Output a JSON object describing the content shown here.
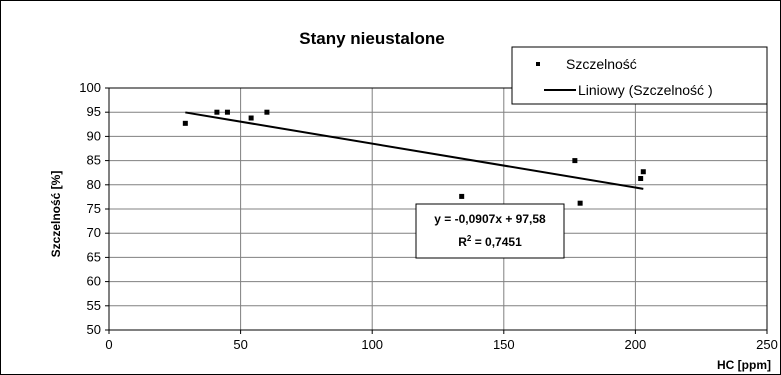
{
  "chart_data": {
    "type": "scatter",
    "title": "Stany nieustalone",
    "xlabel": "HC [ppm]",
    "ylabel": "Szczelność [%]",
    "xlim": [
      0,
      250
    ],
    "ylim": [
      50,
      100
    ],
    "x_ticks": [
      0,
      50,
      100,
      150,
      200,
      250
    ],
    "y_ticks": [
      50,
      55,
      60,
      65,
      70,
      75,
      80,
      85,
      90,
      95,
      100
    ],
    "grid": {
      "x": true,
      "y": true
    },
    "legend_position": "top-right",
    "series": [
      {
        "name": "Szczelność",
        "kind": "markers",
        "color": "#000000",
        "x": [
          29,
          41,
          45,
          54,
          60,
          134,
          177,
          179,
          202,
          203
        ],
        "y": [
          92.7,
          95,
          95,
          93.8,
          95,
          77.6,
          85,
          76.2,
          81.3,
          82.7
        ]
      },
      {
        "name": "Liniowy (Szczelność )",
        "kind": "trendline",
        "color": "#000000",
        "slope": -0.0907,
        "intercept": 97.58,
        "x_range": [
          29,
          203
        ]
      }
    ],
    "annotations": {
      "equation": "y = -0,0907x + 97,58",
      "r2_label": "R",
      "r2_exp": "2",
      "r2_value": " = 0,7451"
    },
    "colors": {
      "plot_background": "#ffffff",
      "grid": "#808080",
      "frame": "#000000"
    }
  }
}
